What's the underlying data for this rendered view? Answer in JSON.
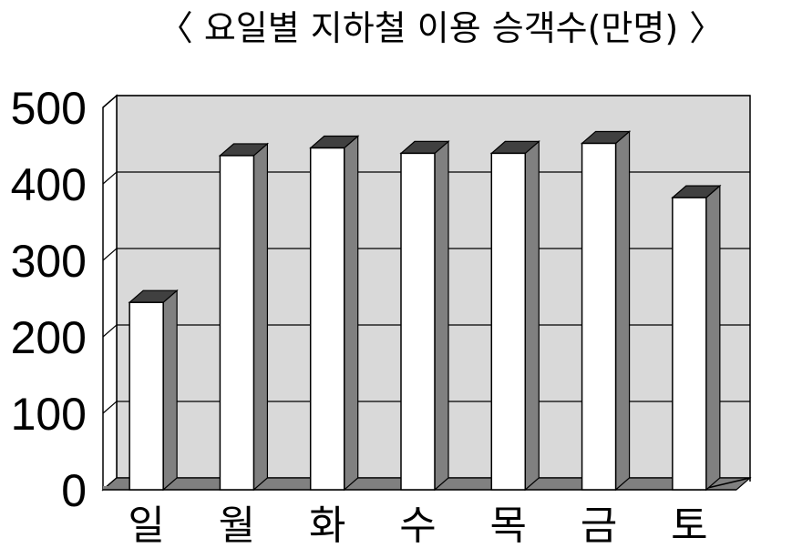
{
  "chart_data": {
    "type": "bar",
    "title": "〈 요일별 지하철 이용 승객수(만명) 〉",
    "categories": [
      "일",
      "월",
      "화",
      "수",
      "목",
      "금",
      "토"
    ],
    "values": [
      245,
      437,
      447,
      440,
      440,
      453,
      382
    ],
    "ylim": [
      0,
      500
    ],
    "yticks": [
      "0",
      "100",
      "200",
      "300",
      "400",
      "500"
    ],
    "xlabel": "",
    "ylabel": "",
    "grid": true,
    "legend": "none",
    "style": "3d-column"
  },
  "colors": {
    "wall": "#d9d9d9",
    "floor": "#808080",
    "bar_front": "#ffffff",
    "bar_side": "#808080",
    "bar_top": "#404040",
    "line": "#000000"
  }
}
